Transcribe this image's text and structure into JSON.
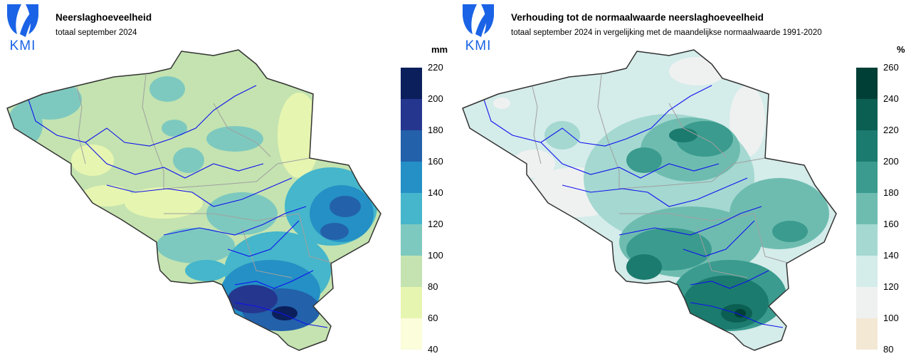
{
  "brand": {
    "logo_text": "KMI"
  },
  "panels": [
    {
      "title": "Neerslaghoeveelheid",
      "subtitle": "totaal september 2024",
      "unit": "mm",
      "legend": {
        "ticks": [
          "220",
          "200",
          "180",
          "160",
          "140",
          "120",
          "100",
          "80",
          "60",
          "40"
        ],
        "colors": [
          "#0b1f5c",
          "#25368f",
          "#2361aa",
          "#2490c5",
          "#45b6cb",
          "#7ec9bf",
          "#c4e3b0",
          "#e6f5b0",
          "#fbfddb"
        ]
      }
    },
    {
      "title": "Verhouding tot de normaalwaarde neerslaghoeveelheid",
      "subtitle": "totaal september 2024 in vergelijking met de maandelijkse normaalwaarde 1991-2020",
      "unit": "%",
      "legend": {
        "ticks": [
          "260",
          "240",
          "220",
          "200",
          "180",
          "160",
          "140",
          "120",
          "100",
          "80"
        ],
        "colors": [
          "#003f35",
          "#0b5e52",
          "#1b7b6e",
          "#3a9b8e",
          "#6ebcb0",
          "#a4d8d1",
          "#d4ecea",
          "#eff1f0",
          "#f3e8d4"
        ]
      }
    }
  ]
}
